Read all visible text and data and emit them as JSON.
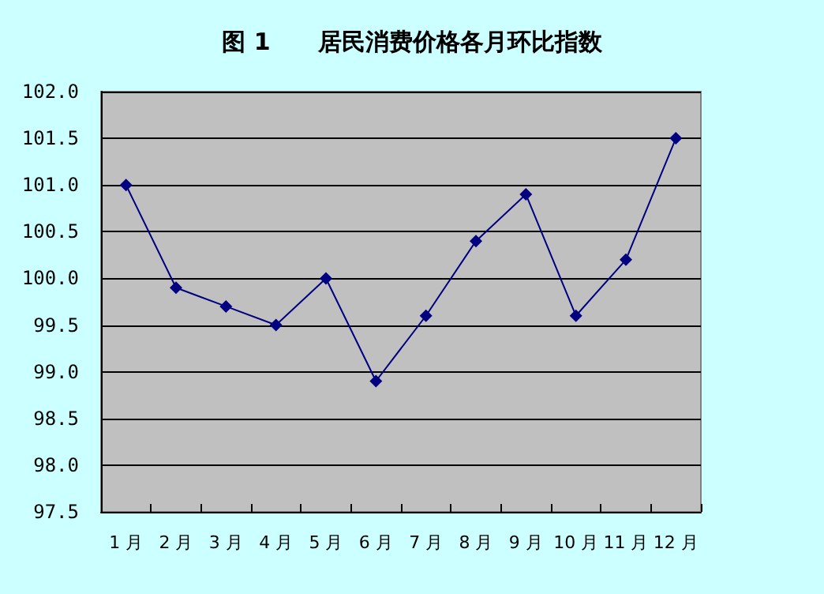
{
  "chart_data": {
    "type": "line",
    "title": "图 1　　居民消费价格各月环比指数",
    "categories": [
      "1 月",
      "2 月",
      "3 月",
      "4 月",
      "5 月",
      "6 月",
      "7 月",
      "8 月",
      "9 月",
      "10 月",
      "11 月",
      "12 月"
    ],
    "series": [
      {
        "color": "#000080",
        "values": [
          101.0,
          99.9,
          99.7,
          99.5,
          100.0,
          98.9,
          99.6,
          100.4,
          100.9,
          99.6,
          100.2,
          101.5
        ]
      }
    ],
    "ylim": [
      97.5,
      102.0
    ],
    "yticks": [
      {
        "value": 97.5,
        "label": "97.5"
      },
      {
        "value": 98,
        "label": "98.0"
      },
      {
        "value": 98.5,
        "label": "98.5"
      },
      {
        "value": 99,
        "label": "99.0"
      },
      {
        "value": 99.5,
        "label": "99.5"
      },
      {
        "value": 100,
        "label": "100.0"
      },
      {
        "value": 100.5,
        "label": "100.5"
      },
      {
        "value": 101,
        "label": "101.0"
      },
      {
        "value": 101.5,
        "label": "101.5"
      },
      {
        "value": 102,
        "label": "102.0"
      }
    ],
    "grid": "y",
    "marker": "diamond"
  }
}
